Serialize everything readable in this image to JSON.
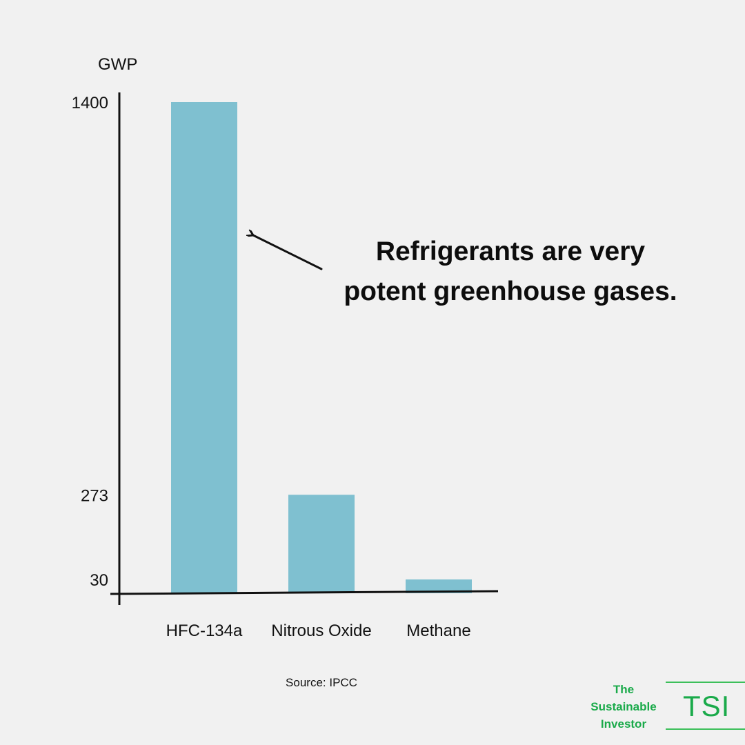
{
  "chart_data": {
    "type": "bar",
    "ylabel": "GWP",
    "categories": [
      "HFC-134a",
      "Nitrous Oxide",
      "Methane"
    ],
    "values": [
      1400,
      273,
      30
    ],
    "yticks": [
      1400,
      273,
      30
    ],
    "ylim": [
      0,
      1400
    ],
    "grid": false,
    "legend": "none",
    "colors": {
      "bar": "#7fc0d0",
      "axis": "#111111"
    },
    "annotation": {
      "line1": "Refrigerants are very",
      "line2": "potent greenhouse gases.",
      "points_to": "HFC-134a"
    },
    "source": "Source: IPCC"
  },
  "logo": {
    "line1": "The",
    "line2": "Sustainable",
    "line3": "Investor",
    "mark": "TSI",
    "color": "#1aaa4a"
  }
}
